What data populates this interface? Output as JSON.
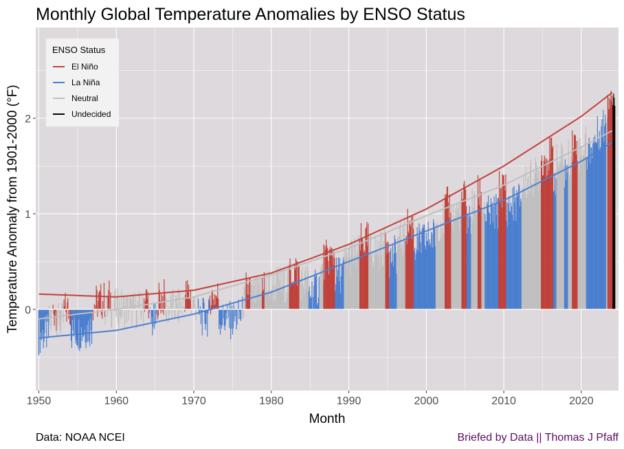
{
  "chart_data": {
    "type": "bar",
    "title": "Monthly Global Temperature Anomalies by ENSO Status",
    "xlabel": "Month",
    "ylabel": "Temperature Anomaly from 1901-2000  (°F)",
    "xlim": [
      1949.6,
      2024.8
    ],
    "ylim": [
      -0.85,
      2.95
    ],
    "x_ticks": [
      "1950",
      "1960",
      "1970",
      "1980",
      "1990",
      "2000",
      "2010",
      "2020"
    ],
    "y_ticks": [
      "0",
      "1",
      "2"
    ],
    "grid": true,
    "legend": {
      "title": "ENSO Status",
      "placement": "top-left",
      "entries": [
        "El Niño",
        "La Niña",
        "Neutral",
        "Undecided"
      ]
    },
    "colors": {
      "El Niño": "#c0413b",
      "La Niña": "#4a7fcf",
      "Neutral": "#bfbfbf",
      "Undecided": "#000000",
      "panel": "#ded9dc",
      "grid": "#ffffff"
    },
    "enso_periods": [
      {
        "from": 1950.0,
        "to": 1951.3,
        "status": "La Niña"
      },
      {
        "from": 1951.3,
        "to": 1951.7,
        "status": "Neutral"
      },
      {
        "from": 1951.7,
        "to": 1952.3,
        "status": "El Niño"
      },
      {
        "from": 1952.3,
        "to": 1953.2,
        "status": "Neutral"
      },
      {
        "from": 1953.2,
        "to": 1954.1,
        "status": "El Niño"
      },
      {
        "from": 1954.1,
        "to": 1956.9,
        "status": "La Niña"
      },
      {
        "from": 1956.9,
        "to": 1958.5,
        "status": "El Niño"
      },
      {
        "from": 1958.5,
        "to": 1958.9,
        "status": "Neutral"
      },
      {
        "from": 1958.9,
        "to": 1959.3,
        "status": "El Niño"
      },
      {
        "from": 1959.3,
        "to": 1963.5,
        "status": "Neutral"
      },
      {
        "from": 1963.5,
        "to": 1964.2,
        "status": "El Niño"
      },
      {
        "from": 1964.2,
        "to": 1965.3,
        "status": "La Niña"
      },
      {
        "from": 1965.3,
        "to": 1966.3,
        "status": "El Niño"
      },
      {
        "from": 1966.3,
        "to": 1968.8,
        "status": "Neutral"
      },
      {
        "from": 1968.8,
        "to": 1969.6,
        "status": "El Niño"
      },
      {
        "from": 1969.6,
        "to": 1970.5,
        "status": "Neutral"
      },
      {
        "from": 1970.5,
        "to": 1972.0,
        "status": "La Niña"
      },
      {
        "from": 1972.0,
        "to": 1973.2,
        "status": "El Niño"
      },
      {
        "from": 1973.2,
        "to": 1976.3,
        "status": "La Niña"
      },
      {
        "from": 1976.3,
        "to": 1976.7,
        "status": "Neutral"
      },
      {
        "from": 1976.7,
        "to": 1977.3,
        "status": "El Niño"
      },
      {
        "from": 1977.3,
        "to": 1978.8,
        "status": "Neutral"
      },
      {
        "from": 1978.8,
        "to": 1979.1,
        "status": "El Niño"
      },
      {
        "from": 1979.1,
        "to": 1982.3,
        "status": "Neutral"
      },
      {
        "from": 1982.3,
        "to": 1983.6,
        "status": "El Niño"
      },
      {
        "from": 1983.6,
        "to": 1984.8,
        "status": "Neutral"
      },
      {
        "from": 1984.8,
        "to": 1986.2,
        "status": "La Niña"
      },
      {
        "from": 1986.2,
        "to": 1986.7,
        "status": "Neutral"
      },
      {
        "from": 1986.7,
        "to": 1988.2,
        "status": "El Niño"
      },
      {
        "from": 1988.2,
        "to": 1989.4,
        "status": "La Niña"
      },
      {
        "from": 1989.4,
        "to": 1991.4,
        "status": "Neutral"
      },
      {
        "from": 1991.4,
        "to": 1992.5,
        "status": "El Niño"
      },
      {
        "from": 1992.5,
        "to": 1994.7,
        "status": "Neutral"
      },
      {
        "from": 1994.7,
        "to": 1995.2,
        "status": "El Niño"
      },
      {
        "from": 1995.2,
        "to": 1996.2,
        "status": "La Niña"
      },
      {
        "from": 1996.2,
        "to": 1997.3,
        "status": "Neutral"
      },
      {
        "from": 1997.3,
        "to": 1998.4,
        "status": "El Niño"
      },
      {
        "from": 1998.4,
        "to": 2001.2,
        "status": "La Niña"
      },
      {
        "from": 2001.2,
        "to": 2002.4,
        "status": "Neutral"
      },
      {
        "from": 2002.4,
        "to": 2003.2,
        "status": "El Niño"
      },
      {
        "from": 2003.2,
        "to": 2004.5,
        "status": "Neutral"
      },
      {
        "from": 2004.5,
        "to": 2005.2,
        "status": "El Niño"
      },
      {
        "from": 2005.2,
        "to": 2005.8,
        "status": "La Niña"
      },
      {
        "from": 2005.8,
        "to": 2006.6,
        "status": "Neutral"
      },
      {
        "from": 2006.6,
        "to": 2007.1,
        "status": "El Niño"
      },
      {
        "from": 2007.1,
        "to": 2007.5,
        "status": "Neutral"
      },
      {
        "from": 2007.5,
        "to": 2009.3,
        "status": "La Niña"
      },
      {
        "from": 2009.3,
        "to": 2010.3,
        "status": "El Niño"
      },
      {
        "from": 2010.3,
        "to": 2012.3,
        "status": "La Niña"
      },
      {
        "from": 2012.3,
        "to": 2014.8,
        "status": "Neutral"
      },
      {
        "from": 2014.8,
        "to": 2016.4,
        "status": "El Niño"
      },
      {
        "from": 2016.4,
        "to": 2016.8,
        "status": "La Niña"
      },
      {
        "from": 2016.8,
        "to": 2017.8,
        "status": "Neutral"
      },
      {
        "from": 2017.8,
        "to": 2018.3,
        "status": "La Niña"
      },
      {
        "from": 2018.3,
        "to": 2018.8,
        "status": "Neutral"
      },
      {
        "from": 2018.8,
        "to": 2019.5,
        "status": "El Niño"
      },
      {
        "from": 2019.5,
        "to": 2020.6,
        "status": "Neutral"
      },
      {
        "from": 2020.6,
        "to": 2023.2,
        "status": "La Niña"
      },
      {
        "from": 2023.2,
        "to": 2023.4,
        "status": "Neutral"
      },
      {
        "from": 2023.4,
        "to": 2024.0,
        "status": "El Niño"
      },
      {
        "from": 2024.0,
        "to": 2024.4,
        "status": "Undecided"
      }
    ],
    "trend_lines": [
      {
        "name": "El Niño",
        "x": [
          1950,
          1960,
          1970,
          1980,
          1990,
          2000,
          2010,
          2020,
          2024
        ],
        "y": [
          0.16,
          0.13,
          0.2,
          0.38,
          0.68,
          1.05,
          1.5,
          2.02,
          2.27
        ]
      },
      {
        "name": "Neutral",
        "x": [
          1950,
          1960,
          1970,
          1980,
          1990,
          2000,
          2010,
          2020,
          2024
        ],
        "y": [
          -0.1,
          0.0,
          0.13,
          0.36,
          0.64,
          0.98,
          1.3,
          1.7,
          1.87
        ]
      },
      {
        "name": "La Niña",
        "x": [
          1950,
          1960,
          1970,
          1980,
          1990,
          2000,
          2010,
          2020,
          2024
        ],
        "y": [
          -0.3,
          -0.22,
          -0.05,
          0.18,
          0.5,
          0.82,
          1.14,
          1.55,
          1.75
        ]
      }
    ],
    "anomaly_baseline_points": {
      "x": [
        1950,
        1955,
        1960,
        1965,
        1970,
        1975,
        1980,
        1985,
        1990,
        1995,
        2000,
        2005,
        2010,
        2015,
        2020,
        2024
      ],
      "y": [
        -0.15,
        -0.12,
        0.02,
        -0.02,
        0.05,
        0.0,
        0.25,
        0.3,
        0.55,
        0.65,
        0.85,
        1.05,
        1.15,
        1.45,
        1.65,
        2.2
      ]
    }
  },
  "captions": {
    "left": "Data: NOAA NCEI",
    "right": "Briefed by Data || Thomas J Pfaff",
    "right_color": "#5b0b63"
  }
}
